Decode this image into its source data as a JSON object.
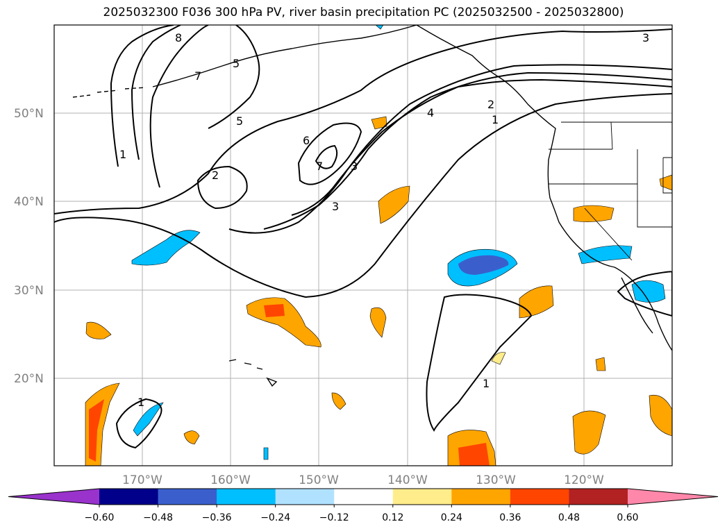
{
  "title": "2025032300 F036 300 hPa PV, river basin precipitation PC (2025032500 - 2025032800)",
  "map": {
    "lat_labels": [
      {
        "text": "50°N",
        "lat": 50
      },
      {
        "text": "40°N",
        "lat": 40
      },
      {
        "text": "30°N",
        "lat": 30
      },
      {
        "text": "20°N",
        "lat": 20
      }
    ],
    "lon_labels": [
      {
        "text": "170°W",
        "lon": -170
      },
      {
        "text": "160°W",
        "lon": -160
      },
      {
        "text": "150°W",
        "lon": -150
      },
      {
        "text": "140°W",
        "lon": -140
      },
      {
        "text": "130°W",
        "lon": -130
      },
      {
        "text": "120°W",
        "lon": -120
      }
    ],
    "contour_labels": [
      "8",
      "7",
      "5",
      "6",
      "7",
      "5",
      "2",
      "1",
      "3",
      "4",
      "2",
      "1",
      "3",
      "1",
      "1",
      "3"
    ]
  },
  "colorbar": {
    "ticks": [
      "−0.60",
      "−0.48",
      "−0.36",
      "−0.24",
      "−0.12",
      "0.12",
      "0.24",
      "0.36",
      "0.48",
      "0.60"
    ],
    "colors": [
      "#9933cc",
      "#00008b",
      "#3a5fcd",
      "#00bfff",
      "#b0e2ff",
      "#ffffff",
      "#ffec8b",
      "#ffa500",
      "#ff4500",
      "#b22222",
      "#ff88aa"
    ]
  }
}
